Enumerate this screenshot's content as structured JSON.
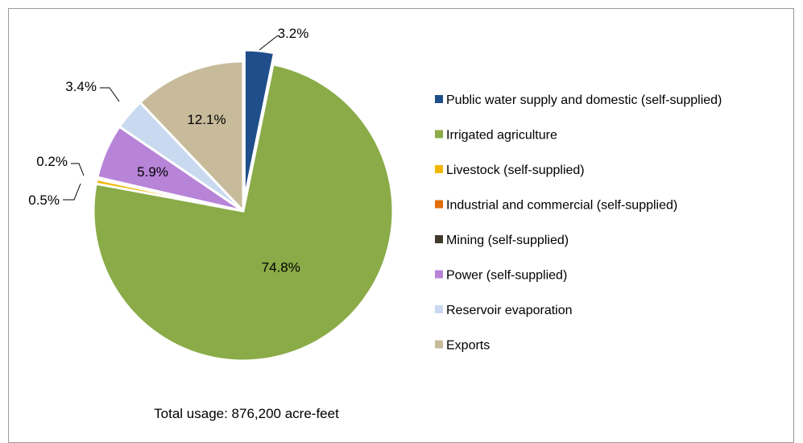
{
  "chart_data": {
    "type": "pie",
    "slices": [
      {
        "name": "Public water supply and domestic (self-supplied)",
        "value": 3.2,
        "label": "3.2%",
        "color": "#1f4e8a",
        "exploded": true
      },
      {
        "name": "Irrigated agriculture",
        "value": 74.8,
        "label": "74.8%",
        "color": "#8aab47"
      },
      {
        "name": "Livestock (self-supplied)",
        "value": 0.5,
        "label": "0.5%",
        "color": "#f1b700"
      },
      {
        "name": "Industrial and commercial (self-supplied)",
        "value": 0.0,
        "label": "",
        "color": "#e36c0a"
      },
      {
        "name": "Mining (self-supplied)",
        "value": 0.2,
        "label": "0.2%",
        "color": "#3f3a2b"
      },
      {
        "name": "Power (self-supplied)",
        "value": 5.9,
        "label": "5.9%",
        "color": "#b784d8"
      },
      {
        "name": "Reservoir evaporation",
        "value": 3.4,
        "label": "3.4%",
        "color": "#c9daf0"
      },
      {
        "name": "Exports",
        "value": 12.1,
        "label": "12.1%",
        "color": "#c8bb9b"
      }
    ],
    "legend_position": "right",
    "footer": "Total usage: 876,200 acre-feet"
  }
}
